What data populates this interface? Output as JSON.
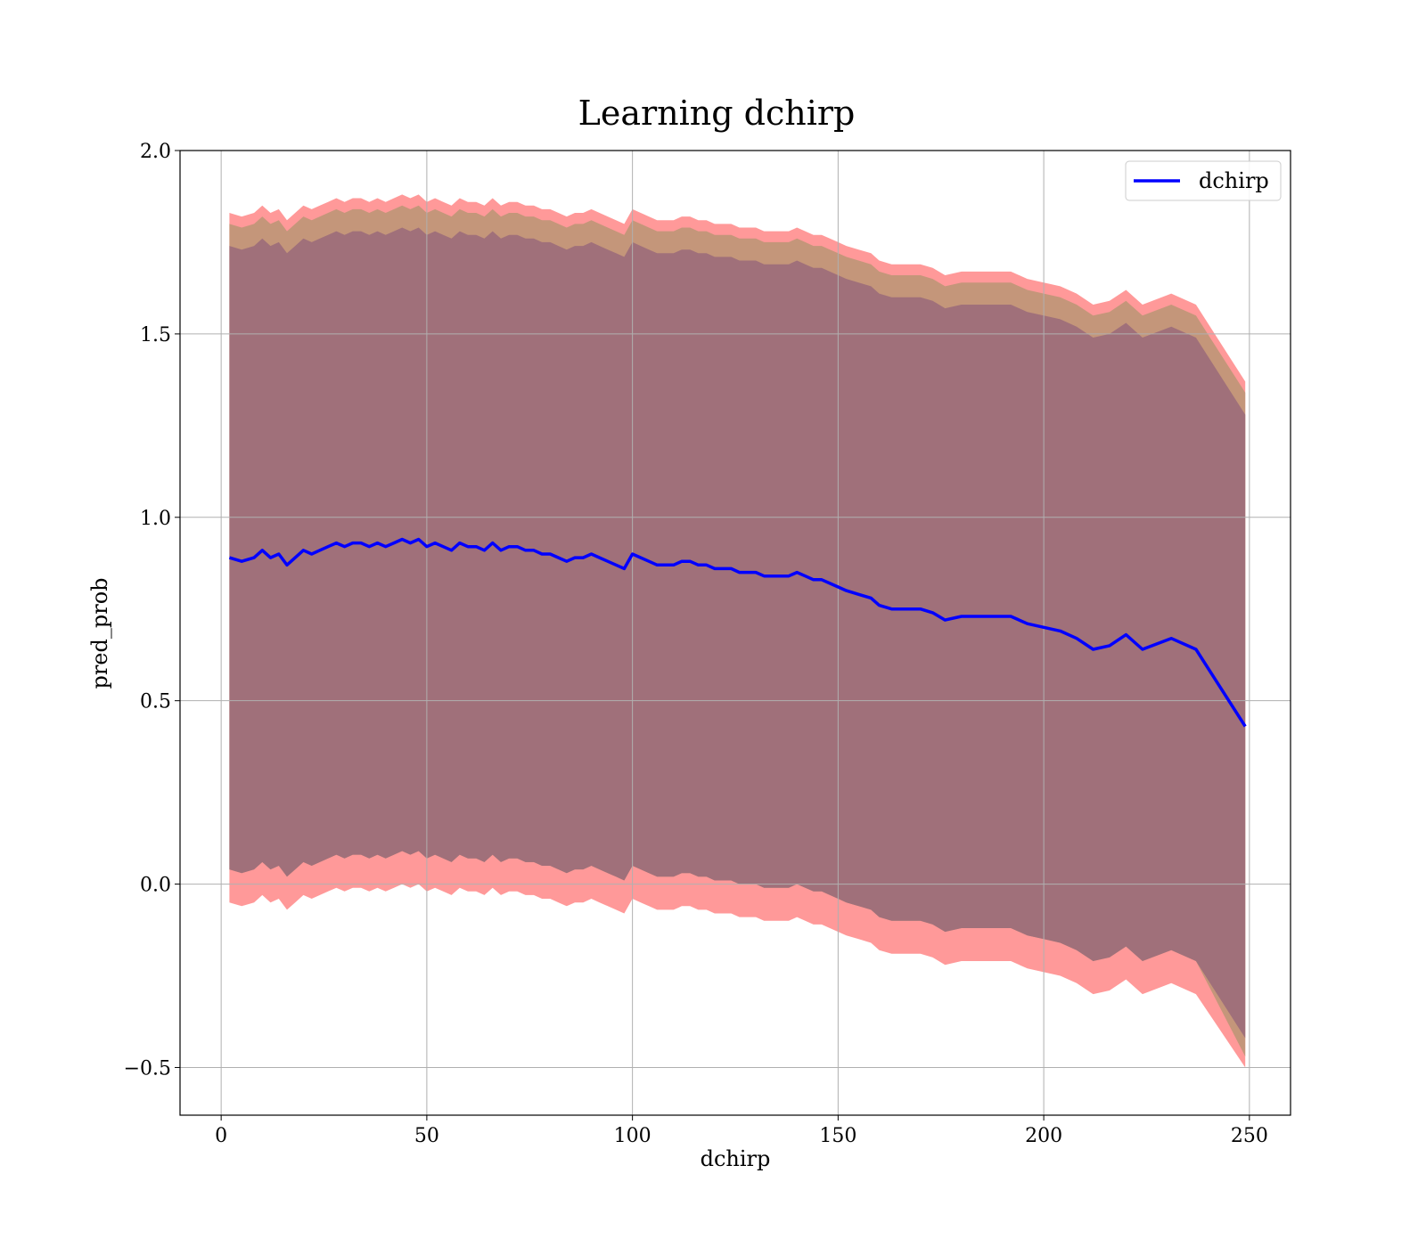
{
  "chart_data": {
    "type": "line",
    "title": "Learning dchirp",
    "xlabel": "dchirp",
    "ylabel": "pred_prob",
    "xlim": [
      -10,
      260
    ],
    "ylim": [
      -0.63,
      2.0
    ],
    "xticks": [
      0,
      50,
      100,
      150,
      200,
      250
    ],
    "yticks": [
      -0.5,
      0.0,
      0.5,
      1.0,
      1.5,
      2.0
    ],
    "xtick_labels": [
      "0",
      "50",
      "100",
      "150",
      "200",
      "250"
    ],
    "ytick_labels": [
      "−0.5",
      "0.0",
      "0.5",
      "1.0",
      "1.5",
      "2.0"
    ],
    "grid": true,
    "legend_position": "top-right",
    "colors": {
      "line": "#0000ff",
      "band_outer": "#ff9999",
      "band_middle": "#c4967a",
      "band_inner": "#a0707a",
      "grid": "#b0b0b0"
    },
    "series": [
      {
        "name": "dchirp",
        "x": [
          2,
          5,
          8,
          10,
          12,
          14,
          16,
          18,
          20,
          22,
          24,
          26,
          28,
          30,
          32,
          34,
          36,
          38,
          40,
          42,
          44,
          46,
          48,
          50,
          52,
          54,
          56,
          58,
          60,
          62,
          64,
          66,
          68,
          70,
          72,
          74,
          76,
          78,
          80,
          82,
          84,
          86,
          88,
          90,
          92,
          94,
          96,
          98,
          100,
          102,
          104,
          106,
          108,
          110,
          112,
          114,
          116,
          118,
          120,
          122,
          124,
          126,
          128,
          130,
          132,
          134,
          136,
          138,
          140,
          142,
          144,
          146,
          148,
          150,
          152,
          155,
          158,
          160,
          163,
          166,
          170,
          173,
          176,
          180,
          184,
          188,
          192,
          196,
          200,
          204,
          208,
          212,
          216,
          220,
          224,
          231,
          237,
          249
        ],
        "y": [
          0.89,
          0.88,
          0.89,
          0.91,
          0.89,
          0.9,
          0.87,
          0.89,
          0.91,
          0.9,
          0.91,
          0.92,
          0.93,
          0.92,
          0.93,
          0.93,
          0.92,
          0.93,
          0.92,
          0.93,
          0.94,
          0.93,
          0.94,
          0.92,
          0.93,
          0.92,
          0.91,
          0.93,
          0.92,
          0.92,
          0.91,
          0.93,
          0.91,
          0.92,
          0.92,
          0.91,
          0.91,
          0.9,
          0.9,
          0.89,
          0.88,
          0.89,
          0.89,
          0.9,
          0.89,
          0.88,
          0.87,
          0.86,
          0.9,
          0.89,
          0.88,
          0.87,
          0.87,
          0.87,
          0.88,
          0.88,
          0.87,
          0.87,
          0.86,
          0.86,
          0.86,
          0.85,
          0.85,
          0.85,
          0.84,
          0.84,
          0.84,
          0.84,
          0.85,
          0.84,
          0.83,
          0.83,
          0.82,
          0.81,
          0.8,
          0.79,
          0.78,
          0.76,
          0.75,
          0.75,
          0.75,
          0.74,
          0.72,
          0.73,
          0.73,
          0.73,
          0.73,
          0.71,
          0.7,
          0.69,
          0.67,
          0.64,
          0.65,
          0.68,
          0.64,
          0.67,
          0.64,
          0.43
        ]
      }
    ],
    "bands": [
      {
        "label": "outer",
        "offset_upper": 0.94,
        "offset_lower": 0.94,
        "end_upper": 1.37,
        "end_lower": -0.5
      },
      {
        "label": "middle",
        "offset_upper": 0.91,
        "offset_lower": 0.85,
        "end_upper": 1.34,
        "end_lower": -0.47
      },
      {
        "label": "inner",
        "offset_upper": 0.85,
        "offset_lower": 0.85,
        "end_upper": 1.28,
        "end_lower": -0.42
      }
    ]
  }
}
